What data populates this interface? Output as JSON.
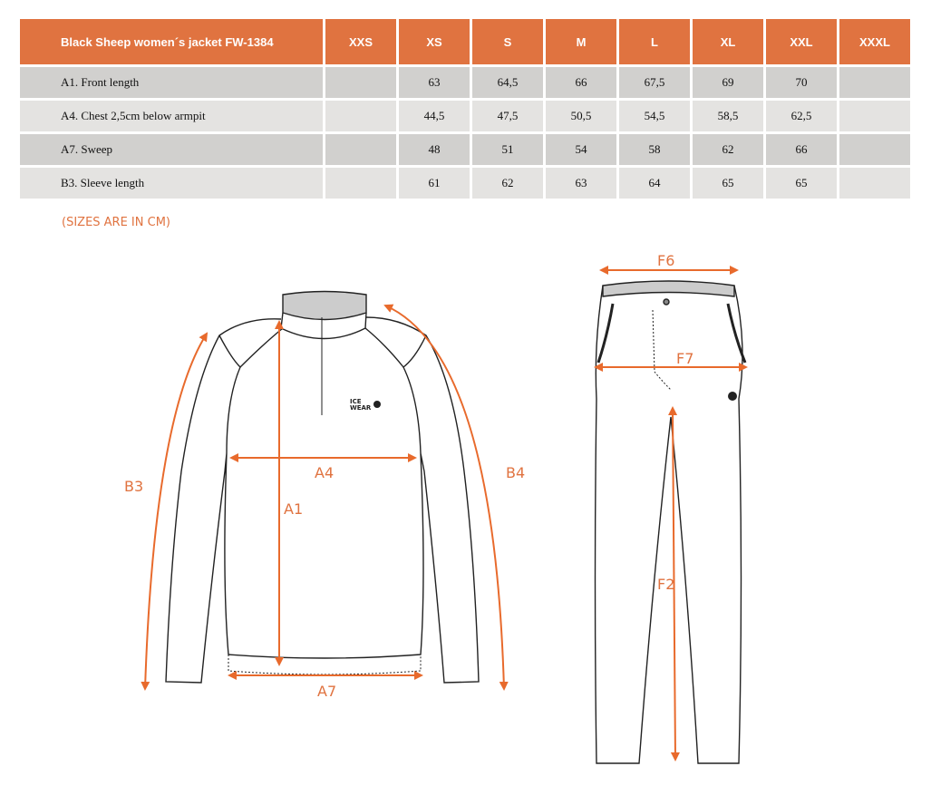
{
  "table": {
    "title": "Black Sheep women´s jacket FW-1384",
    "sizes": [
      "XXS",
      "XS",
      "S",
      "M",
      "L",
      "XL",
      "XXL",
      "XXXL"
    ],
    "rows": [
      {
        "label": "A1. Front length",
        "values": [
          "",
          "63",
          "64,5",
          "66",
          "67,5",
          "69",
          "70",
          ""
        ]
      },
      {
        "label": "A4. Chest 2,5cm below armpit",
        "values": [
          "",
          "44,5",
          "47,5",
          "50,5",
          "54,5",
          "58,5",
          "62,5",
          ""
        ]
      },
      {
        "label": "A7. Sweep",
        "values": [
          "",
          "48",
          "51",
          "54",
          "58",
          "62",
          "66",
          ""
        ]
      },
      {
        "label": "B3. Sleeve length",
        "values": [
          "",
          "61",
          "62",
          "63",
          "64",
          "65",
          "65",
          ""
        ]
      }
    ],
    "header_color": "#e07340"
  },
  "note": "(SIZES ARE IN CM)",
  "diagram": {
    "jacket_labels": {
      "a1": "A1",
      "a4": "A4",
      "a7": "A7",
      "b3": "B3",
      "b4": "B4"
    },
    "pants_labels": {
      "f2": "F2",
      "f6": "F6",
      "f7": "F7"
    },
    "logo": {
      "line1": "ICE",
      "line2": "WEAR"
    },
    "accent": "#e86a2c"
  }
}
